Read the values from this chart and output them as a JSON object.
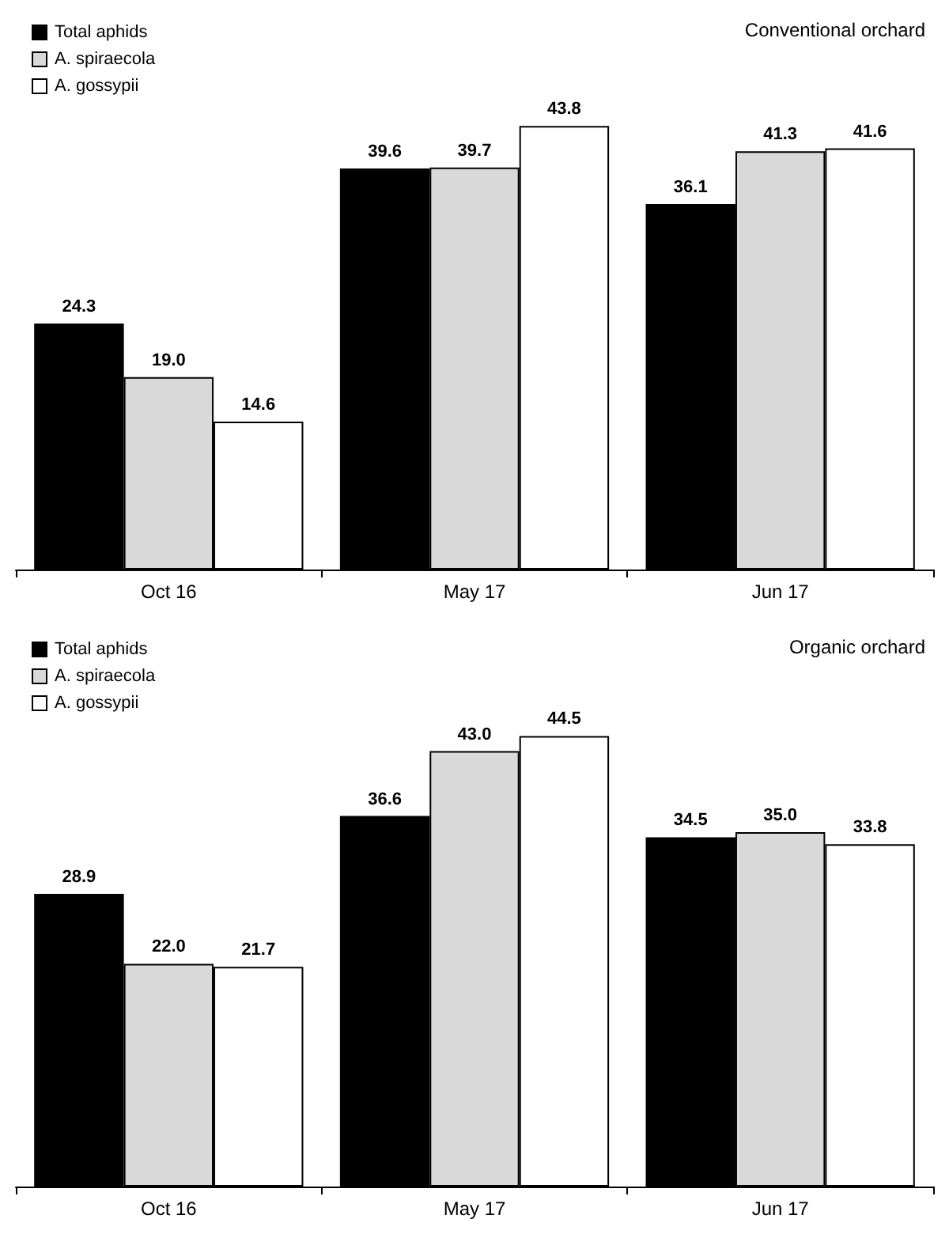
{
  "chart_data": [
    {
      "type": "bar",
      "title": "Conventional orchard",
      "categories": [
        "Oct 16",
        "May 17",
        "Jun 17"
      ],
      "series": [
        {
          "name": "Total aphids",
          "color": "#000000",
          "values": [
            24.3,
            39.6,
            36.1
          ],
          "value_labels": [
            "24.3",
            "39.6",
            "36.1"
          ]
        },
        {
          "name": "A. spiraecola",
          "color": "#d9d9d9",
          "values": [
            19,
            39.7,
            41.3
          ],
          "value_labels": [
            "19.0",
            "39.7",
            "41.3"
          ]
        },
        {
          "name": "A. gossypii",
          "color": "#ffffff",
          "values": [
            14.6,
            43.8,
            41.6
          ],
          "value_labels": [
            "14.6",
            "43.8",
            "41.6"
          ]
        }
      ],
      "legend": "top left",
      "tick_labels": "x"
    },
    {
      "type": "bar",
      "title": "Organic orchard",
      "categories": [
        "Oct 16",
        "May 17",
        "Jun 17"
      ],
      "series": [
        {
          "name": "Total aphids",
          "color": "#000000",
          "values": [
            28.9,
            36.6,
            34.5
          ],
          "value_labels": [
            "28.9",
            "36.6",
            "34.5"
          ]
        },
        {
          "name": "A. spiraecola",
          "color": "#d9d9d9",
          "values": [
            22,
            43,
            35
          ],
          "value_labels": [
            "22.0",
            "43.0",
            "35.0"
          ]
        },
        {
          "name": "A. gossypii",
          "color": "#ffffff",
          "values": [
            21.7,
            44.5,
            33.8
          ],
          "value_labels": [
            "21.7",
            "44.5",
            "33.8"
          ]
        }
      ],
      "legend": "top left",
      "tick_labels": "x"
    }
  ]
}
